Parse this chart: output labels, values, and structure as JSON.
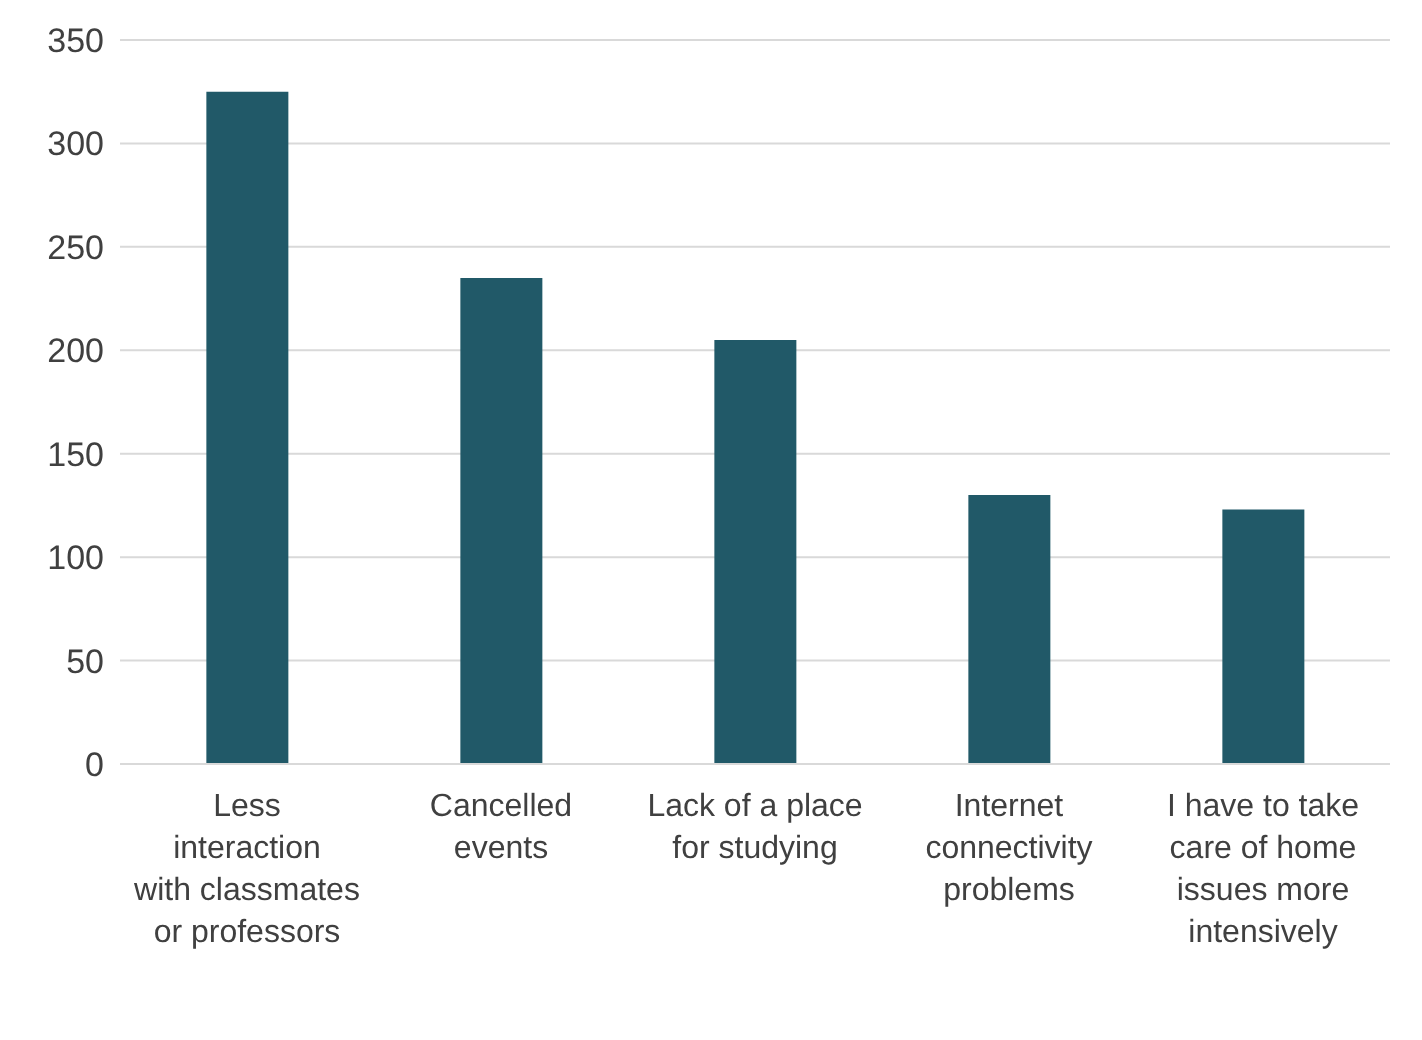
{
  "chart_data": {
    "type": "bar",
    "categories": [
      "Less interaction with classmates or professors",
      "Cancelled events",
      "Lack of a place for studying",
      "Internet connectivity problems",
      "I have to take care of home issues more intensively"
    ],
    "values": [
      325,
      235,
      205,
      130,
      123
    ],
    "color": "#215968",
    "ylim": [
      0,
      350
    ],
    "yticks": [
      0,
      50,
      100,
      150,
      200,
      250,
      300,
      350
    ],
    "grid": "y",
    "legend": false
  }
}
